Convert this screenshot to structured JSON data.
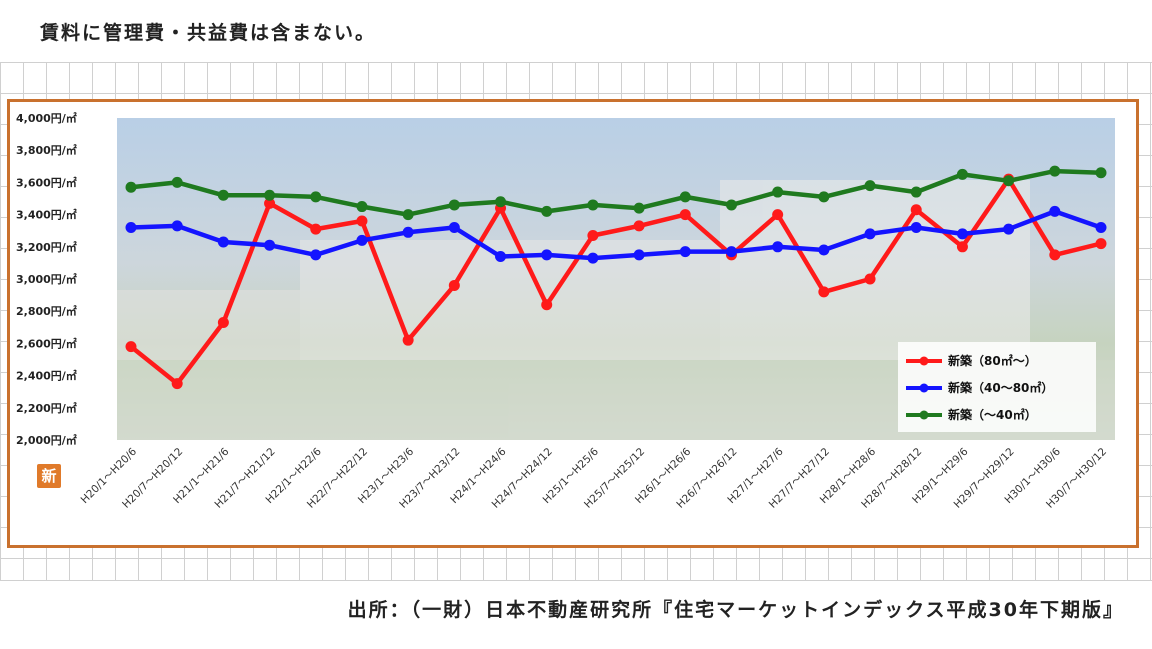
{
  "note": "賃料に管理費・共益費は含まない。",
  "source": "出所：（一財）日本不動産研究所『住宅マーケットインデックス平成30年下期版』",
  "logo_char": "新",
  "colors": {
    "frame": "#c9712e",
    "red": "#ff1a1a",
    "blue": "#1414ff",
    "green": "#1f7a1f"
  },
  "chart_data": {
    "type": "line",
    "title": "",
    "xlabel": "",
    "ylabel": "",
    "ylim": [
      2000,
      4000
    ],
    "y_ticks": [
      2000,
      2200,
      2400,
      2600,
      2800,
      3000,
      3200,
      3400,
      3600,
      3800,
      4000
    ],
    "y_tick_labels": [
      "2,000円/㎡",
      "2,200円/㎡",
      "2,400円/㎡",
      "2,600円/㎡",
      "2,800円/㎡",
      "3,000円/㎡",
      "3,200円/㎡",
      "3,400円/㎡",
      "3,600円/㎡",
      "3,800円/㎡",
      "4,000円/㎡"
    ],
    "categories": [
      "H20/1～H20/6",
      "H20/7～H20/12",
      "H21/1～H21/6",
      "H21/7～H21/12",
      "H22/1～H22/6",
      "H22/7～H22/12",
      "H23/1～H23/6",
      "H23/7～H23/12",
      "H24/1～H24/6",
      "H24/7～H24/12",
      "H25/1～H25/6",
      "H25/7～H25/12",
      "H26/1～H26/6",
      "H26/7～H26/12",
      "H27/1～H27/6",
      "H27/7～H27/12",
      "H28/1～H28/6",
      "H28/7～H28/12",
      "H29/1～H29/6",
      "H29/7～H29/12",
      "H30/1～H30/6",
      "H30/7～H30/12"
    ],
    "legend_position": "bottom-right",
    "series": [
      {
        "name": "新築（80㎡～）",
        "color": "#ff1a1a",
        "values": [
          2580,
          2350,
          2730,
          3470,
          3310,
          3360,
          2620,
          2960,
          3440,
          2840,
          3270,
          3330,
          3400,
          3150,
          3400,
          2920,
          3000,
          3430,
          3200,
          3620,
          3150,
          3220
        ]
      },
      {
        "name": "新築（40～80㎡）",
        "color": "#1414ff",
        "values": [
          3320,
          3330,
          3230,
          3210,
          3150,
          3240,
          3290,
          3320,
          3140,
          3150,
          3130,
          3150,
          3170,
          3170,
          3200,
          3180,
          3280,
          3320,
          3280,
          3310,
          3420,
          3320
        ]
      },
      {
        "name": "新築（～40㎡）",
        "color": "#1f7a1f",
        "values": [
          3570,
          3600,
          3520,
          3520,
          3510,
          3450,
          3400,
          3460,
          3480,
          3420,
          3460,
          3440,
          3510,
          3460,
          3540,
          3510,
          3580,
          3540,
          3650,
          3610,
          3670,
          3660
        ]
      }
    ]
  }
}
